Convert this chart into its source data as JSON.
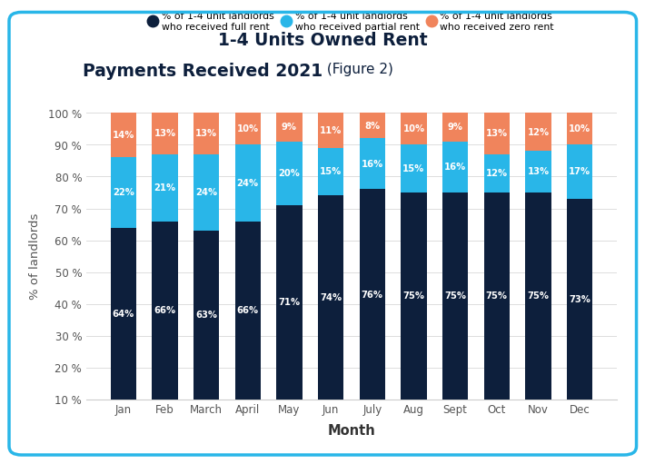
{
  "months": [
    "Jan",
    "Feb",
    "March",
    "April",
    "May",
    "Jun",
    "July",
    "Aug",
    "Sept",
    "Oct",
    "Nov",
    "Dec"
  ],
  "full_rent": [
    64,
    66,
    63,
    66,
    71,
    74,
    76,
    75,
    75,
    75,
    75,
    73
  ],
  "partial_rent": [
    22,
    21,
    24,
    24,
    20,
    15,
    16,
    15,
    16,
    12,
    13,
    17
  ],
  "zero_rent": [
    14,
    13,
    13,
    10,
    9,
    11,
    8,
    10,
    9,
    13,
    12,
    10
  ],
  "color_full": "#0d1f3c",
  "color_partial": "#29b6e8",
  "color_zero": "#f0845c",
  "title_line1": "1-4 Units Owned Rent",
  "title_line2_bold": "Payments Received 2021",
  "title_line2_normal": " (Figure 2)",
  "ylabel": "% of landlords",
  "xlabel": "Month",
  "legend_full": "% of 1-4 unit landlords\nwho received full rent",
  "legend_partial": "% of 1-4 unit landlords\nwho received partial rent",
  "legend_zero": "% of 1-4 unit landlords\nwho received zero rent",
  "ylim_min": 10,
  "ylim_max": 100,
  "bar_bottom": 10,
  "background_color": "#ffffff",
  "border_color": "#29b6e8",
  "yticks": [
    10,
    20,
    30,
    40,
    50,
    60,
    70,
    80,
    90,
    100
  ]
}
